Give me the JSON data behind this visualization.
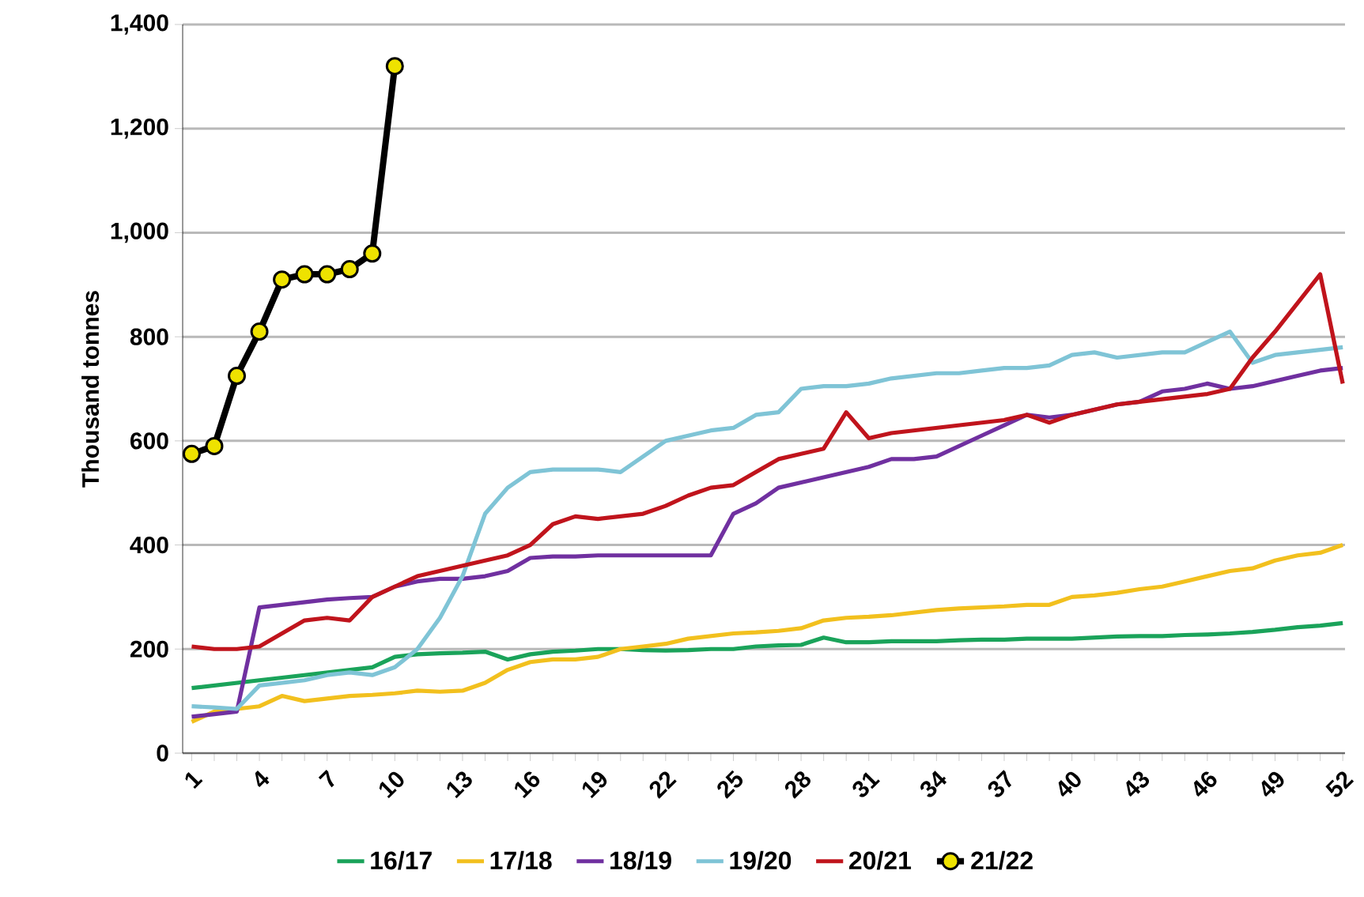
{
  "chart_data": {
    "type": "line",
    "ylabel": "Thousand tonnes",
    "categories": [
      "1",
      null,
      null,
      "4",
      null,
      null,
      "7",
      null,
      null,
      "10",
      null,
      null,
      "13",
      null,
      null,
      "16",
      null,
      null,
      "19",
      null,
      null,
      "22",
      null,
      null,
      "25",
      null,
      null,
      "28",
      null,
      null,
      "31",
      null,
      null,
      "34",
      null,
      null,
      "37",
      null,
      null,
      "40",
      null,
      null,
      "43",
      null,
      null,
      "46",
      null,
      null,
      "49",
      null,
      null,
      "52"
    ],
    "ylim": [
      0,
      1400
    ],
    "yticks": [
      0,
      200,
      400,
      600,
      800,
      {
        "value": 1000,
        "label": "1,000"
      },
      {
        "value": 1200,
        "label": "1,200"
      },
      {
        "value": 1400,
        "label": "1,400"
      }
    ],
    "grid": "y",
    "legend": "bottom",
    "line_style": "solid",
    "series": [
      {
        "name": "16/17",
        "color": "#1aa35a",
        "values": [
          125,
          130,
          135,
          140,
          145,
          150,
          155,
          160,
          165,
          185,
          190,
          192,
          193,
          195,
          180,
          190,
          195,
          197,
          200,
          200,
          198,
          197,
          198,
          200,
          200,
          205,
          207,
          208,
          222,
          213,
          213,
          215,
          215,
          215,
          217,
          218,
          218,
          220,
          220,
          220,
          222,
          224,
          225,
          225,
          227,
          228,
          230,
          233,
          237,
          242,
          245,
          250
        ]
      },
      {
        "name": "17/18",
        "color": "#f2c01e",
        "values": [
          60,
          80,
          85,
          90,
          110,
          100,
          105,
          110,
          112,
          115,
          120,
          118,
          120,
          135,
          160,
          175,
          180,
          180,
          185,
          200,
          205,
          210,
          220,
          225,
          230,
          232,
          235,
          240,
          255,
          260,
          262,
          265,
          270,
          275,
          278,
          280,
          282,
          285,
          285,
          300,
          303,
          308,
          315,
          320,
          330,
          340,
          350,
          355,
          370,
          380,
          385,
          400
        ]
      },
      {
        "name": "18/19",
        "color": "#7030a0",
        "values": [
          70,
          75,
          80,
          280,
          285,
          290,
          295,
          298,
          300,
          320,
          330,
          335,
          335,
          340,
          350,
          375,
          378,
          378,
          380,
          380,
          380,
          380,
          380,
          380,
          460,
          480,
          510,
          520,
          530,
          540,
          550,
          565,
          565,
          570,
          590,
          610,
          630,
          650,
          645,
          650,
          660,
          670,
          675,
          695,
          700,
          710,
          700,
          705,
          715,
          725,
          735,
          740
        ]
      },
      {
        "name": "19/20",
        "color": "#7fc4d6",
        "values": [
          90,
          88,
          85,
          130,
          135,
          140,
          150,
          155,
          150,
          165,
          200,
          260,
          340,
          460,
          510,
          540,
          545,
          545,
          545,
          540,
          570,
          600,
          610,
          620,
          625,
          650,
          655,
          700,
          705,
          705,
          710,
          720,
          725,
          730,
          730,
          735,
          740,
          740,
          745,
          765,
          770,
          760,
          765,
          770,
          770,
          790,
          810,
          750,
          765,
          770,
          775,
          780
        ]
      },
      {
        "name": "20/21",
        "color": "#c0141c",
        "values": [
          205,
          200,
          200,
          205,
          230,
          255,
          260,
          255,
          300,
          320,
          340,
          350,
          360,
          370,
          380,
          400,
          440,
          455,
          450,
          455,
          460,
          475,
          495,
          510,
          515,
          540,
          565,
          575,
          585,
          655,
          605,
          615,
          620,
          625,
          630,
          635,
          640,
          650,
          635,
          650,
          660,
          670,
          675,
          680,
          685,
          690,
          700,
          760,
          810,
          865,
          920,
          710
        ]
      },
      {
        "name": "21/22",
        "color": "#000000",
        "marker": "circle",
        "values": [
          575,
          590,
          725,
          810,
          910,
          920,
          920,
          930,
          960,
          1320,
          null,
          null,
          null,
          null,
          null,
          null,
          null,
          null,
          null,
          null,
          null,
          null,
          null,
          null,
          null,
          null,
          null,
          null,
          null,
          null,
          null,
          null,
          null,
          null,
          null,
          null,
          null,
          null,
          null,
          null,
          null,
          null,
          null,
          null,
          null,
          null,
          null,
          null,
          null,
          null,
          null,
          null
        ]
      }
    ]
  }
}
